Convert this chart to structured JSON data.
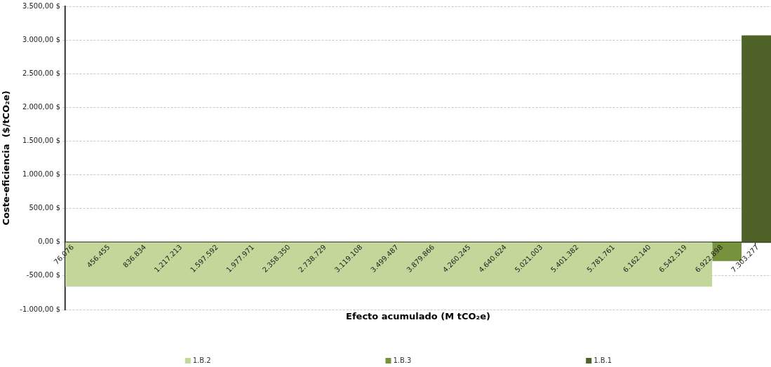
{
  "chart_data": {
    "type": "area",
    "xlabel": "Efecto acumulado (M tCO₂e)",
    "ylabel": "Coste-eficiencia  ($/tCO₂e)",
    "xlim": [
      24000,
      7470000
    ],
    "xticks": [
      {
        "value": 76076,
        "label": "76.076"
      },
      {
        "value": 456455,
        "label": "456.455"
      },
      {
        "value": 836834,
        "label": "836.834"
      },
      {
        "value": 1217213,
        "label": "1.217.213"
      },
      {
        "value": 1597592,
        "label": "1.597.592"
      },
      {
        "value": 1977971,
        "label": "1.977.971"
      },
      {
        "value": 2358350,
        "label": "2.358.350"
      },
      {
        "value": 2738729,
        "label": "2.738.729"
      },
      {
        "value": 3119108,
        "label": "3.119.108"
      },
      {
        "value": 3499487,
        "label": "3.499.487"
      },
      {
        "value": 3879866,
        "label": "3.879.866"
      },
      {
        "value": 4260245,
        "label": "4.260.245"
      },
      {
        "value": 4640624,
        "label": "4.640.624"
      },
      {
        "value": 5021003,
        "label": "5.021.003"
      },
      {
        "value": 5401382,
        "label": "5.401.382"
      },
      {
        "value": 5781761,
        "label": "5.781.761"
      },
      {
        "value": 6162140,
        "label": "6.162.140"
      },
      {
        "value": 6542519,
        "label": "6.542.519"
      },
      {
        "value": 6922898,
        "label": "6.922.898"
      },
      {
        "value": 7303277,
        "label": "7.303.277"
      }
    ],
    "ylim": [
      -1000,
      3500
    ],
    "yticks": [
      {
        "value": -1000,
        "label": "-1.000,00 $"
      },
      {
        "value": -500,
        "label": "-500,00 $"
      },
      {
        "value": 0,
        "label": "0,00 $"
      },
      {
        "value": 500,
        "label": "500,00 $"
      },
      {
        "value": 1000,
        "label": "1.000,00 $"
      },
      {
        "value": 1500,
        "label": "1.500,00 $"
      },
      {
        "value": 2000,
        "label": "2.000,00 $"
      },
      {
        "value": 2500,
        "label": "2.500,00 $"
      },
      {
        "value": 3000,
        "label": "3.000,00 $"
      },
      {
        "value": 3500,
        "label": "3.500,00 $"
      }
    ],
    "grid": "y",
    "legend": "bottom",
    "series": [
      {
        "name": "1.B.2",
        "color": "#c4d79b",
        "x": [
          24000,
          6850000
        ],
        "values": [
          -660,
          -660
        ]
      },
      {
        "name": "1.B.3",
        "color": "#76923c",
        "x": [
          6850000,
          7160000
        ],
        "values": [
          -280,
          -280
        ]
      },
      {
        "name": "1.B.1",
        "color": "#4f6228",
        "x": [
          7160000,
          7470000
        ],
        "values": [
          3070,
          3070
        ]
      }
    ]
  }
}
